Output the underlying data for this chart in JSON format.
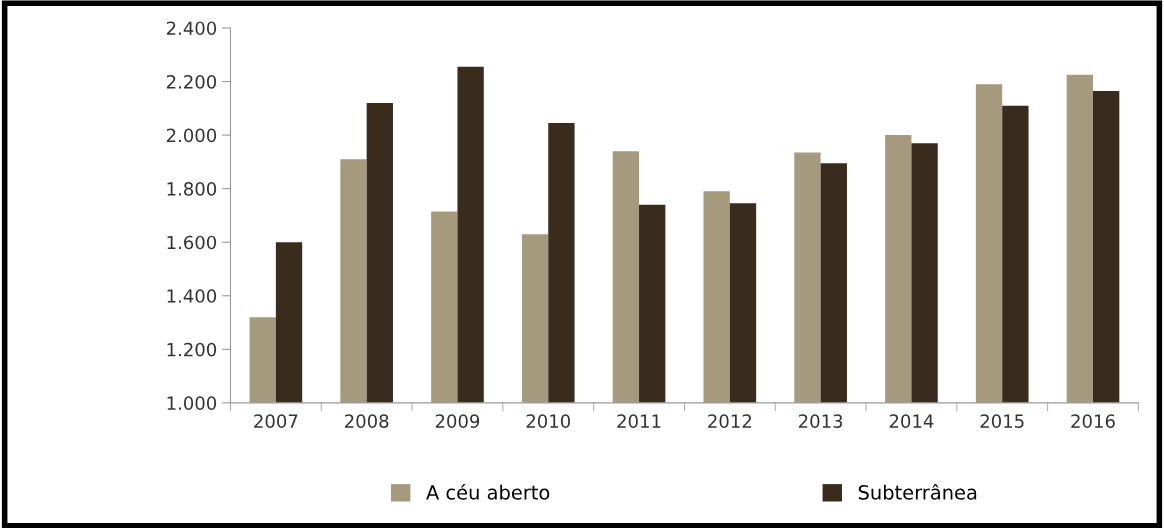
{
  "chart_data": {
    "type": "bar",
    "categories": [
      "2007",
      "2008",
      "2009",
      "2010",
      "2011",
      "2012",
      "2013",
      "2014",
      "2015",
      "2016"
    ],
    "series": [
      {
        "name": "A céu aberto",
        "color": "#a59a7e",
        "values": [
          1320,
          1910,
          1715,
          1630,
          1940,
          1790,
          1935,
          2000,
          2190,
          2225
        ]
      },
      {
        "name": "Subterrânea",
        "color": "#3a2c1d",
        "values": [
          1600,
          2120,
          2255,
          2045,
          1740,
          1745,
          1895,
          1970,
          2110,
          2165
        ]
      }
    ],
    "ylim": [
      1000,
      2400
    ],
    "yticks": [
      {
        "value": 1000,
        "label": "1.000"
      },
      {
        "value": 1200,
        "label": "1.200"
      },
      {
        "value": 1400,
        "label": "1.400"
      },
      {
        "value": 1600,
        "label": "1.600"
      },
      {
        "value": 1800,
        "label": "1.800"
      },
      {
        "value": 2000,
        "label": "2.000"
      },
      {
        "value": 2200,
        "label": "2.200"
      },
      {
        "value": 2400,
        "label": "2.400"
      }
    ],
    "grid": false,
    "legend": "bottom"
  }
}
